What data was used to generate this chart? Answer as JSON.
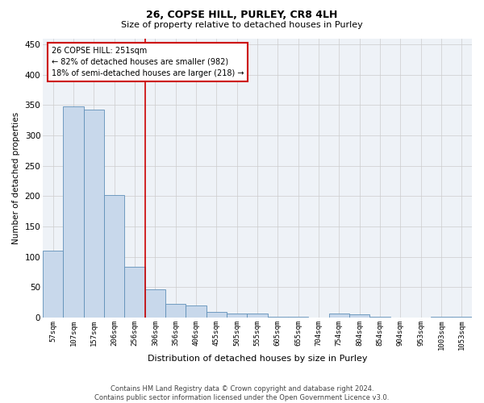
{
  "title": "26, COPSE HILL, PURLEY, CR8 4LH",
  "subtitle": "Size of property relative to detached houses in Purley",
  "xlabel": "Distribution of detached houses by size in Purley",
  "ylabel": "Number of detached properties",
  "bar_color": "#c8d8eb",
  "bar_edge_color": "#6090b8",
  "grid_color": "#cccccc",
  "bg_color": "#eef2f7",
  "annotation_box_color": "#cc0000",
  "annotation_text": "26 COPSE HILL: 251sqm\n← 82% of detached houses are smaller (982)\n18% of semi-detached houses are larger (218) →",
  "vline_color": "#cc0000",
  "footer": "Contains HM Land Registry data © Crown copyright and database right 2024.\nContains public sector information licensed under the Open Government Licence v3.0.",
  "categories": [
    "57sqm",
    "107sqm",
    "157sqm",
    "206sqm",
    "256sqm",
    "306sqm",
    "356sqm",
    "406sqm",
    "455sqm",
    "505sqm",
    "555sqm",
    "605sqm",
    "655sqm",
    "704sqm",
    "754sqm",
    "804sqm",
    "854sqm",
    "904sqm",
    "953sqm",
    "1003sqm",
    "1053sqm"
  ],
  "values": [
    110,
    348,
    343,
    202,
    84,
    46,
    23,
    20,
    10,
    7,
    7,
    2,
    1,
    0,
    7,
    6,
    1,
    0,
    0,
    2,
    2
  ],
  "vline_x_idx": 4.5,
  "ylim": [
    0,
    460
  ],
  "yticks": [
    0,
    50,
    100,
    150,
    200,
    250,
    300,
    350,
    400,
    450
  ],
  "title_fontsize": 9,
  "subtitle_fontsize": 8,
  "xlabel_fontsize": 8,
  "ylabel_fontsize": 7.5,
  "xtick_fontsize": 6.5,
  "ytick_fontsize": 7.5,
  "annotation_fontsize": 7,
  "footer_fontsize": 6
}
